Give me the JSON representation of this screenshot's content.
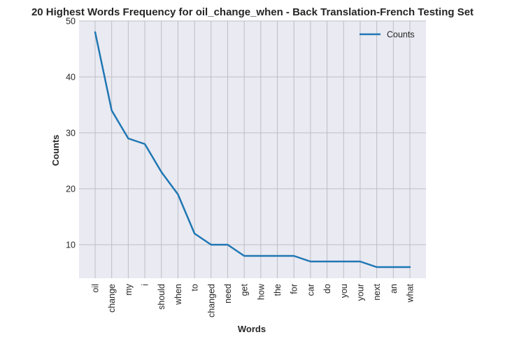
{
  "chart_data": {
    "type": "line",
    "title": "20 Highest Words Frequency for oil_change_when - Back Translation-French Testing Set",
    "xlabel": "Words",
    "ylabel": "Counts",
    "categories": [
      "oil",
      "change",
      "my",
      "i",
      "should",
      "when",
      "to",
      "changed",
      "need",
      "get",
      "how",
      "the",
      "for",
      "car",
      "do",
      "you",
      "your",
      "next",
      "an",
      "what"
    ],
    "series": [
      {
        "name": "Counts",
        "color": "#1f77b4",
        "values": [
          48,
          34,
          29,
          28,
          23,
          19,
          12,
          10,
          10,
          8,
          8,
          8,
          8,
          7,
          7,
          7,
          7,
          6,
          6,
          6
        ]
      }
    ],
    "yticks": [
      10,
      20,
      30,
      40,
      50
    ],
    "ylim": [
      4.0,
      50
    ],
    "grid": true,
    "legend": "top-right"
  }
}
